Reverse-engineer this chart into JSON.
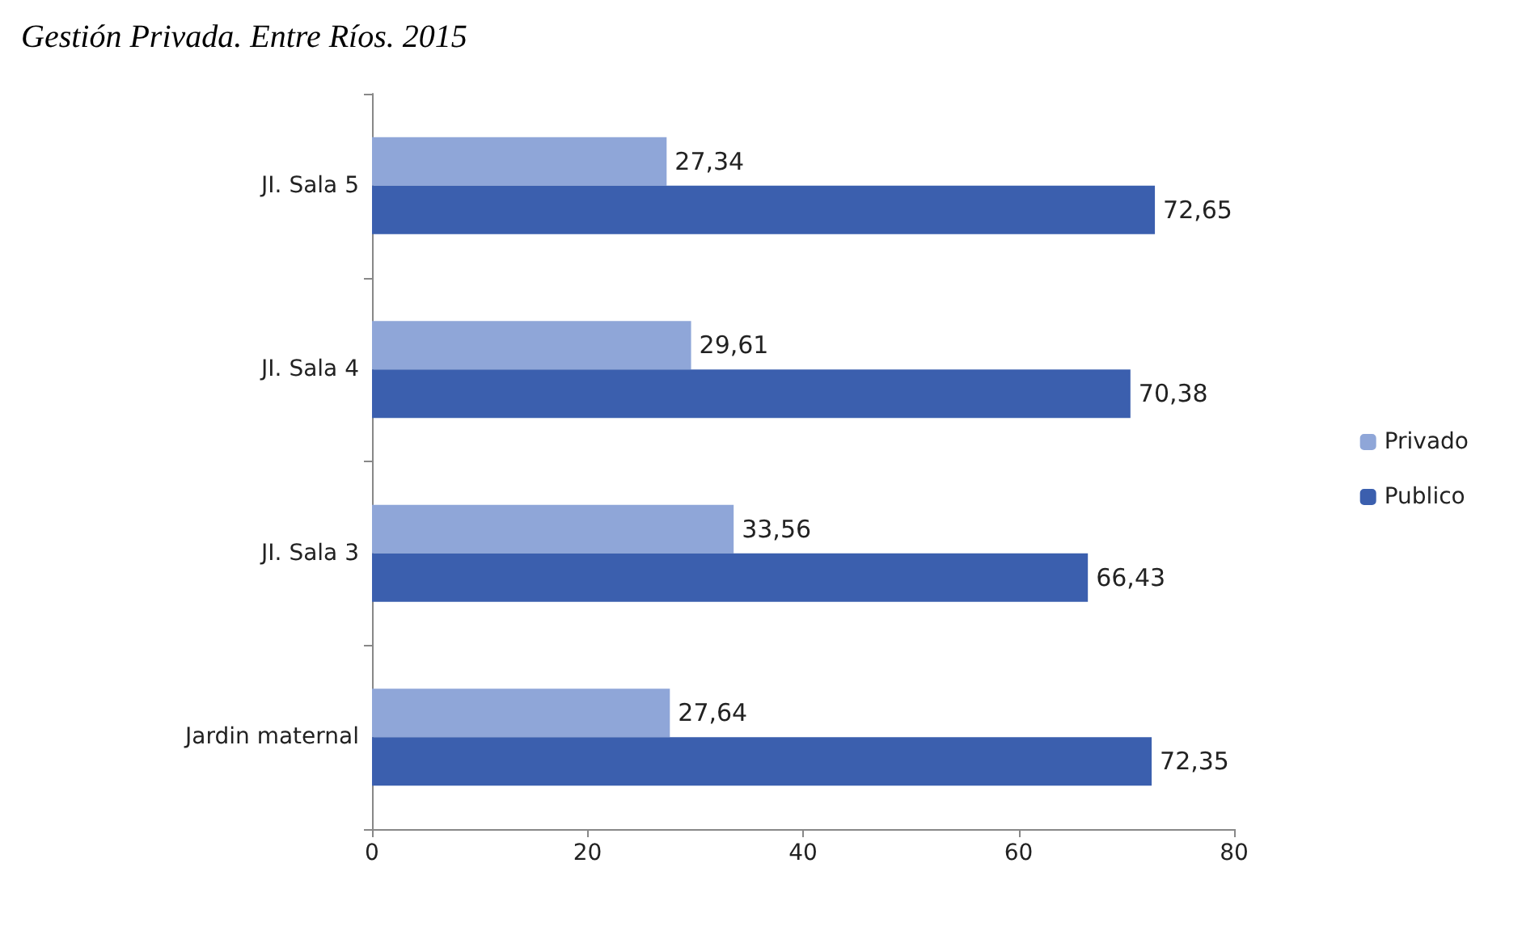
{
  "chart_data": {
    "type": "bar",
    "orientation": "horizontal",
    "title": "Gestión Privada. Entre Ríos. 2015",
    "categories": [
      "JI. Sala 5",
      "JI. Sala 4",
      "JI. Sala 3",
      "Jardin maternal"
    ],
    "series": [
      {
        "name": "Privado",
        "color": "#8fa6d8",
        "values": [
          27.34,
          29.61,
          33.56,
          27.64
        ],
        "value_labels": [
          "27,34",
          "29,61",
          "33,56",
          "27,64"
        ]
      },
      {
        "name": "Publico",
        "color": "#3b5fae",
        "values": [
          72.65,
          70.38,
          66.43,
          72.35
        ],
        "value_labels": [
          "72,65",
          "70,38",
          "66,43",
          "72,35"
        ]
      }
    ],
    "xlim": [
      0,
      80
    ],
    "xticks": [
      0,
      20,
      40,
      60,
      80
    ],
    "grid": false,
    "legend": "right"
  }
}
